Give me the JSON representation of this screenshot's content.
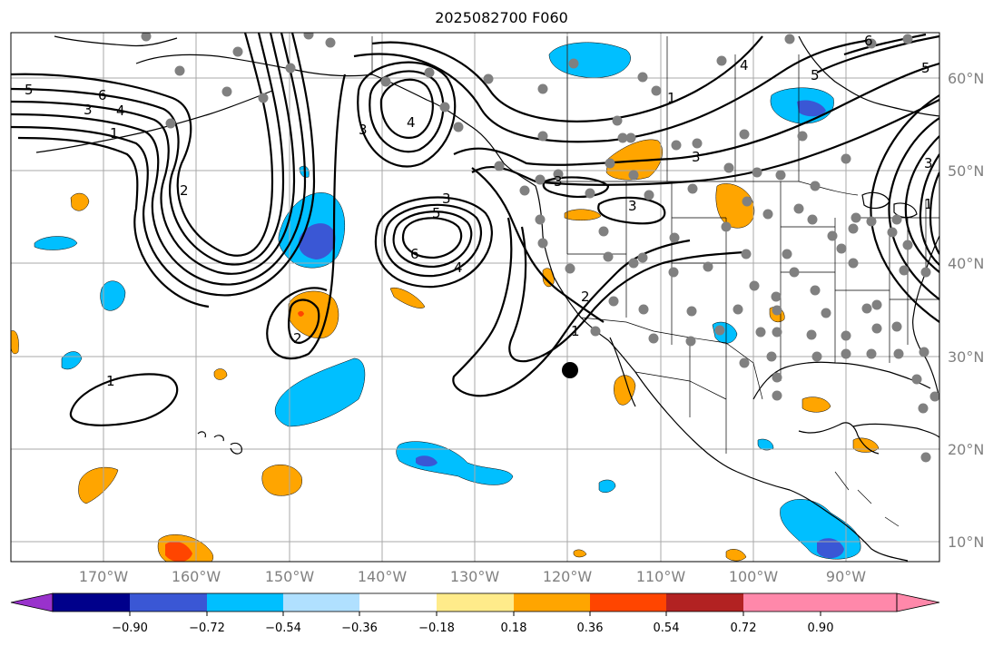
{
  "title": "2025082700 F060",
  "colors": {
    "ocean": "#ffffff",
    "grid": "#a8a8a8",
    "coast": "#000000",
    "station": "#808080",
    "marker": "#000000"
  },
  "latitude_labels": [
    "60°N",
    "50°N",
    "40°N",
    "30°N",
    "20°N",
    "10°N"
  ],
  "longitude_labels": [
    "170°W",
    "160°W",
    "150°W",
    "140°W",
    "130°W",
    "120°W",
    "110°W",
    "100°W",
    "90°W"
  ],
  "contour_labels": [
    "5",
    "6",
    "3",
    "4",
    "1",
    "2",
    "3",
    "4",
    "3",
    "5",
    "6",
    "4",
    "2",
    "3",
    "3",
    "3",
    "2",
    "1",
    "1",
    "1",
    "4",
    "5",
    "6",
    "3",
    "5",
    "1"
  ],
  "colorbar": {
    "tick_labels": [
      "−0.90",
      "−0.72",
      "−0.54",
      "−0.36",
      "−0.18",
      "0.18",
      "0.36",
      "0.54",
      "0.72",
      "0.90"
    ],
    "colors": [
      "#9932cc",
      "#00008b",
      "#3a57d5",
      "#00bfff",
      "#b0e0ff",
      "#ffffff",
      "#ffeb8a",
      "#ffa500",
      "#ff4500",
      "#b22222",
      "#ff88aa",
      "#ff88aa"
    ]
  }
}
